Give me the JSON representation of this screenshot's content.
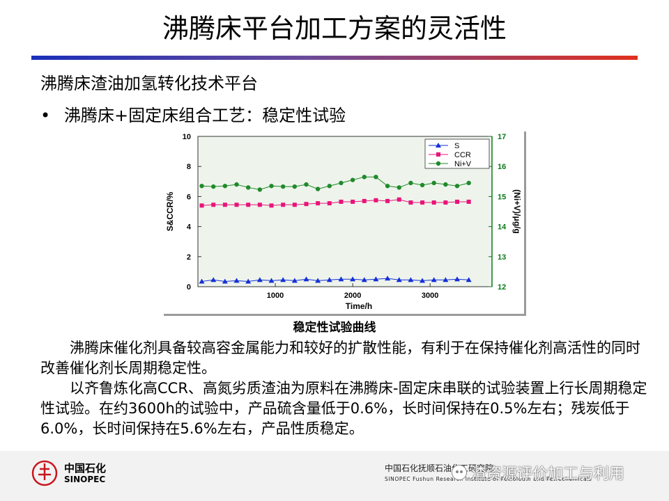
{
  "slide": {
    "title": "沸腾床平台加工方案的灵活性",
    "subtitle": "沸腾床渣油加氢转化技术平台",
    "bullet_symbol": "•",
    "bullet": "沸腾床+固定床组合工艺：稳定性试验",
    "chart_caption": "稳定性试验曲线",
    "paragraph1": "沸腾床催化剂具备较高容金属能力和较好的扩散性能，有利于在保持催化剂高活性的同时改善催化剂长周期稳定性。",
    "paragraph2": "以齐鲁炼化高CCR、高氮劣质渣油为原料在沸腾床-固定床串联的试验装置上行长周期稳定性试验。在约3600h的试验中，产品硫含量低于0.6%，长时间保持在0.5%左右；残炭低于6.0%，长时间保持在5.6%左右，产品性质稳定。"
  },
  "footer": {
    "logo_cn": "中国石化",
    "logo_en": "SINOPEC",
    "org_cn": "中国石化抚顺石油化工研究院",
    "org_en": "SINOPEC  Fushun Research Institute of Petroleum and Petrochemicals",
    "watermark": "渣资源评价加工与利用"
  },
  "colors": {
    "S": "#1530d6",
    "CCR": "#e8147a",
    "NiV": "#1f8a2a",
    "right_axis": "#0a7a18",
    "plot_bg": "#eef4ec"
  },
  "chart_data": {
    "type": "line",
    "xlabel": "Time/h",
    "ylabel": "S&CCR/%",
    "y2label": "(Ni+V)/μg/g",
    "xlim": [
      0,
      3800
    ],
    "ylim": [
      0,
      10
    ],
    "y2lim": [
      12,
      17
    ],
    "xticks": [
      1000,
      2000,
      3000
    ],
    "yticks": [
      0,
      2,
      4,
      6,
      8,
      10
    ],
    "y2ticks": [
      12,
      13,
      14,
      15,
      16,
      17
    ],
    "legend_position": "top-right",
    "grid": false,
    "x": [
      50,
      200,
      350,
      500,
      650,
      800,
      950,
      1100,
      1250,
      1400,
      1550,
      1700,
      1850,
      2000,
      2150,
      2300,
      2450,
      2600,
      2750,
      2900,
      3050,
      3200,
      3350,
      3500
    ],
    "series": [
      {
        "name": "S",
        "axis": "left",
        "marker": "triangle",
        "values": [
          0.35,
          0.45,
          0.35,
          0.4,
          0.35,
          0.45,
          0.4,
          0.45,
          0.4,
          0.5,
          0.4,
          0.45,
          0.5,
          0.5,
          0.45,
          0.5,
          0.55,
          0.45,
          0.45,
          0.4,
          0.45,
          0.45,
          0.5,
          0.45
        ]
      },
      {
        "name": "CCR",
        "axis": "left",
        "marker": "square",
        "values": [
          5.4,
          5.45,
          5.45,
          5.45,
          5.45,
          5.45,
          5.4,
          5.45,
          5.45,
          5.5,
          5.55,
          5.55,
          5.65,
          5.65,
          5.7,
          5.75,
          5.7,
          5.8,
          5.6,
          5.6,
          5.6,
          5.6,
          5.65,
          5.65
        ]
      },
      {
        "name": "Ni+V",
        "axis": "right",
        "marker": "circle",
        "values": [
          15.35,
          15.33,
          15.35,
          15.4,
          15.3,
          15.23,
          15.35,
          15.33,
          15.33,
          15.4,
          15.25,
          15.35,
          15.45,
          15.55,
          15.65,
          15.65,
          15.35,
          15.3,
          15.45,
          15.38,
          15.45,
          15.4,
          15.35,
          15.45
        ]
      }
    ]
  }
}
